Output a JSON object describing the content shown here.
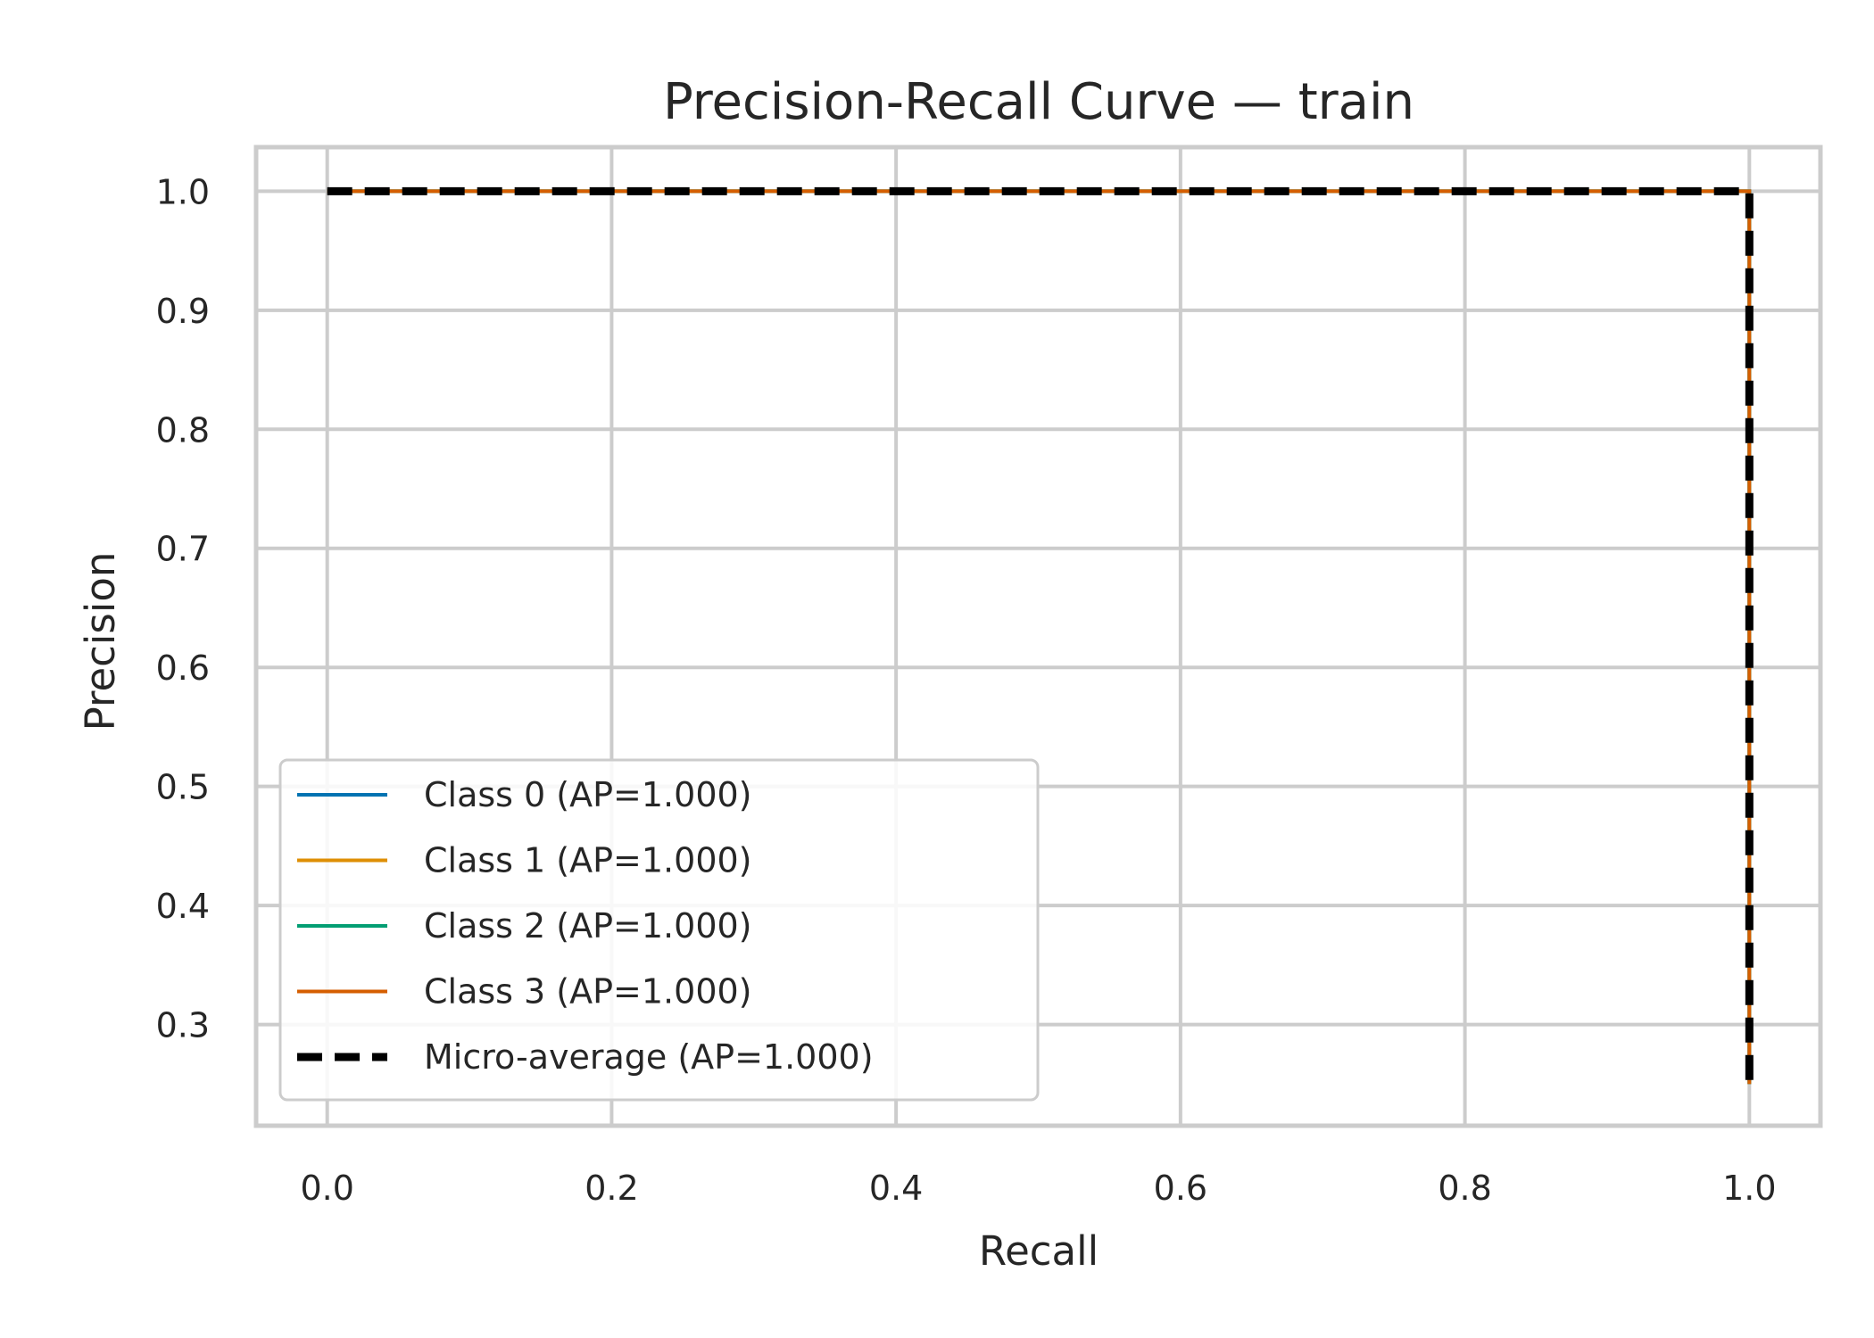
{
  "chart_data": {
    "type": "line",
    "title": "Precision-Recall Curve — train",
    "xlabel": "Recall",
    "ylabel": "Precision",
    "xlim": [
      -0.05,
      1.05
    ],
    "ylim": [
      0.215,
      1.037
    ],
    "xticks": [
      0.0,
      0.2,
      0.4,
      0.6,
      0.8,
      1.0
    ],
    "xtick_labels": [
      "0.0",
      "0.2",
      "0.4",
      "0.6",
      "0.8",
      "1.0"
    ],
    "yticks": [
      0.3,
      0.4,
      0.5,
      0.6,
      0.7,
      0.8,
      0.9,
      1.0
    ],
    "ytick_labels": [
      "0.3",
      "0.4",
      "0.5",
      "0.6",
      "0.7",
      "0.8",
      "0.9",
      "1.0"
    ],
    "grid": true,
    "legend_position": "lower-left",
    "series": [
      {
        "name": "Class 0 (AP=1.000)",
        "color": "#0173b2",
        "style": "solid",
        "x": [
          0.0,
          1.0,
          1.0
        ],
        "y": [
          1.0,
          1.0,
          0.25
        ]
      },
      {
        "name": "Class 1 (AP=1.000)",
        "color": "#de8f05",
        "style": "solid",
        "x": [
          0.0,
          1.0,
          1.0
        ],
        "y": [
          1.0,
          1.0,
          0.25
        ]
      },
      {
        "name": "Class 2 (AP=1.000)",
        "color": "#029e73",
        "style": "solid",
        "x": [
          0.0,
          1.0,
          1.0
        ],
        "y": [
          1.0,
          1.0,
          0.25
        ]
      },
      {
        "name": "Class 3 (AP=1.000)",
        "color": "#d55e00",
        "style": "solid",
        "x": [
          0.0,
          1.0,
          1.0
        ],
        "y": [
          1.0,
          1.0,
          0.25
        ]
      },
      {
        "name": "Micro-average (AP=1.000)",
        "color": "#000000",
        "style": "dashed",
        "x": [
          0.0,
          1.0,
          1.0
        ],
        "y": [
          1.0,
          1.0,
          0.25
        ]
      }
    ]
  }
}
